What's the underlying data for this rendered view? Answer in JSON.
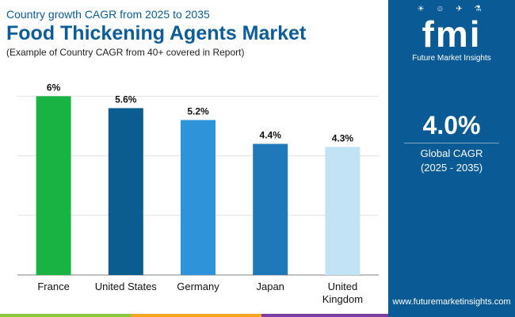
{
  "header": {
    "subtitle": "Country growth CAGR from 2025 to 2035",
    "title": "Food Thickening Agents Market",
    "note": "(Example of Country CAGR from 40+ covered in Report)"
  },
  "side_panel": {
    "logo_text": "fmi",
    "logo_icons": "☀ ☺ ✈ ⚗",
    "brand_name": "Future Market Insights",
    "cagr_value": "4.0%",
    "cagr_label": "Global CAGR",
    "cagr_period": "(2025 - 2035)",
    "website": "www.futuremarketinsights.com"
  },
  "colors": {
    "panel": "#0a5a96",
    "title": "#0b5c99",
    "strip": [
      "#8dc63f",
      "#f5a623",
      "#7b3fa0",
      "#0a5a96"
    ]
  },
  "chart_data": {
    "type": "bar",
    "title": "Food Thickening Agents Market",
    "categories": [
      "France",
      "United States",
      "Germany",
      "Japan",
      "United Kingdom"
    ],
    "category_lines": [
      [
        "France"
      ],
      [
        "United States"
      ],
      [
        "Germany"
      ],
      [
        "Japan"
      ],
      [
        "United",
        "Kingdom"
      ]
    ],
    "values": [
      6,
      5.6,
      5.2,
      4.4,
      4.3
    ],
    "labels": [
      "6%",
      "5.6%",
      "5.2%",
      "4.4%",
      "4.3%"
    ],
    "colors": [
      "#18b343",
      "#0b5c8f",
      "#2e93d8",
      "#1f78b8",
      "#c2e3f5"
    ],
    "xlabel": "",
    "ylabel": "",
    "ylim": [
      0,
      7.5
    ],
    "grid": true
  }
}
